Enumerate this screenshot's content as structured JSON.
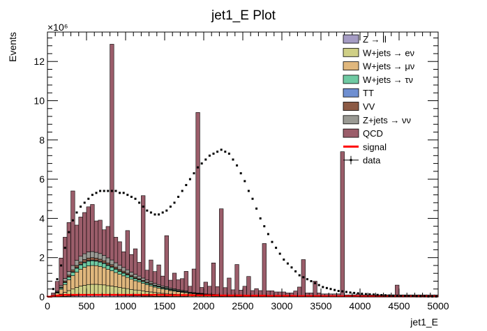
{
  "chart_data": {
    "type": "bar",
    "stacked": true,
    "title": "jet1_E Plot",
    "xlabel": "jet1_E",
    "ylabel": "Events",
    "y_exponent_label": "×10⁶",
    "xlim": [
      0,
      5000
    ],
    "ylim": [
      0,
      13.5
    ],
    "y_unit_multiplier": 1000000,
    "x_ticks": [
      0,
      500,
      1000,
      1500,
      2000,
      2500,
      3000,
      3500,
      4000,
      4500,
      5000
    ],
    "y_ticks": [
      0,
      2,
      4,
      6,
      8,
      10,
      12
    ],
    "bin_width": 50,
    "grid": false,
    "legend_position": "top-right",
    "legend": [
      {
        "label": "Z → ll",
        "color": "#a59cc4",
        "kind": "box"
      },
      {
        "label": "W+jets → eν",
        "color": "#cfcf86",
        "kind": "box"
      },
      {
        "label": "W+jets → μν",
        "color": "#e0b77d",
        "kind": "box"
      },
      {
        "label": "W+jets → τν",
        "color": "#6fcaa3",
        "kind": "box"
      },
      {
        "label": "TT",
        "color": "#6f8fd1",
        "kind": "box"
      },
      {
        "label": "VV",
        "color": "#8c5a45",
        "kind": "box"
      },
      {
        "label": "Z+jets → νν",
        "color": "#9a9a94",
        "kind": "box"
      },
      {
        "label": "QCD",
        "color": "#9b5d6a",
        "kind": "box"
      },
      {
        "label": "signal",
        "color": "#ff0000",
        "kind": "line"
      },
      {
        "label": "data",
        "color": "#000000",
        "kind": "marker"
      }
    ],
    "bin_centers": [
      25,
      75,
      125,
      175,
      225,
      275,
      325,
      375,
      425,
      475,
      525,
      575,
      625,
      675,
      725,
      775,
      825,
      875,
      925,
      975,
      1025,
      1075,
      1125,
      1175,
      1225,
      1275,
      1325,
      1375,
      1425,
      1475,
      1525,
      1575,
      1625,
      1675,
      1725,
      1775,
      1825,
      1875,
      1925,
      1975,
      2025,
      2075,
      2125,
      2175,
      2225,
      2275,
      2325,
      2375,
      2425,
      2475,
      2525,
      2575,
      2625,
      2675,
      2725,
      2775,
      2825,
      2875,
      2925,
      2975,
      3025,
      3075,
      3125,
      3175,
      3225,
      3275,
      3325,
      3375,
      3425,
      3475,
      3525,
      3575,
      3625,
      3675,
      3725,
      3775,
      3825,
      3875,
      3925,
      3975,
      4025,
      4075,
      4125,
      4175,
      4225,
      4275,
      4325,
      4375,
      4425,
      4475,
      4525,
      4575,
      4625,
      4675,
      4725,
      4775,
      4825,
      4875,
      4925,
      4975
    ],
    "series": [
      {
        "name": "Z → ll",
        "color": "#a59cc4",
        "values": [
          0,
          0,
          0.01,
          0.02,
          0.03,
          0.04,
          0.05,
          0.06,
          0.07,
          0.07,
          0.08,
          0.08,
          0.08,
          0.08,
          0.08,
          0.07,
          0.07,
          0.07,
          0.06,
          0.06,
          0.06,
          0.05,
          0.05,
          0.05,
          0.04,
          0.04,
          0.04,
          0.03,
          0.03,
          0.03,
          0.03,
          0.02,
          0.02,
          0.02,
          0.02,
          0.02,
          0.01,
          0.01,
          0.01,
          0.01,
          0.01,
          0.01,
          0.01,
          0.01,
          0,
          0,
          0,
          0,
          0,
          0,
          0,
          0,
          0,
          0,
          0,
          0,
          0,
          0,
          0,
          0,
          0,
          0,
          0,
          0,
          0,
          0,
          0,
          0,
          0,
          0,
          0,
          0,
          0,
          0,
          0,
          0,
          0,
          0,
          0,
          0,
          0,
          0,
          0,
          0,
          0,
          0,
          0,
          0,
          0,
          0,
          0,
          0,
          0,
          0,
          0,
          0,
          0,
          0,
          0,
          0
        ]
      },
      {
        "name": "W+jets → eν",
        "color": "#cfcf86",
        "values": [
          0,
          0.02,
          0.06,
          0.12,
          0.2,
          0.28,
          0.35,
          0.42,
          0.48,
          0.52,
          0.55,
          0.56,
          0.56,
          0.55,
          0.53,
          0.5,
          0.48,
          0.45,
          0.42,
          0.39,
          0.36,
          0.33,
          0.3,
          0.28,
          0.26,
          0.23,
          0.21,
          0.19,
          0.17,
          0.15,
          0.14,
          0.12,
          0.11,
          0.1,
          0.09,
          0.08,
          0.07,
          0.06,
          0.05,
          0.05,
          0.04,
          0.04,
          0.03,
          0.03,
          0.03,
          0.02,
          0.02,
          0.02,
          0.02,
          0.01,
          0.01,
          0.01,
          0.01,
          0.01,
          0.01,
          0.01,
          0,
          0,
          0,
          0,
          0,
          0,
          0,
          0,
          0,
          0,
          0,
          0,
          0,
          0,
          0,
          0,
          0,
          0,
          0,
          0,
          0,
          0,
          0,
          0,
          0,
          0,
          0,
          0,
          0,
          0,
          0,
          0,
          0,
          0,
          0,
          0,
          0,
          0,
          0,
          0,
          0,
          0,
          0,
          0
        ]
      },
      {
        "name": "W+jets → μν",
        "color": "#e0b77d",
        "values": [
          0,
          0.03,
          0.12,
          0.25,
          0.4,
          0.55,
          0.68,
          0.78,
          0.86,
          0.92,
          0.95,
          0.96,
          0.95,
          0.92,
          0.88,
          0.83,
          0.78,
          0.72,
          0.67,
          0.62,
          0.57,
          0.52,
          0.47,
          0.43,
          0.39,
          0.35,
          0.31,
          0.28,
          0.25,
          0.22,
          0.2,
          0.18,
          0.16,
          0.14,
          0.12,
          0.11,
          0.1,
          0.09,
          0.08,
          0.07,
          0.06,
          0.05,
          0.05,
          0.04,
          0.04,
          0.03,
          0.03,
          0.03,
          0.02,
          0.02,
          0.02,
          0.02,
          0.01,
          0.01,
          0.01,
          0.01,
          0.01,
          0.01,
          0,
          0,
          0,
          0,
          0,
          0,
          0,
          0,
          0,
          0,
          0,
          0,
          0,
          0,
          0,
          0,
          0,
          0,
          0,
          0,
          0,
          0,
          0,
          0,
          0,
          0,
          0,
          0,
          0,
          0,
          0,
          0,
          0,
          0,
          0,
          0,
          0,
          0,
          0,
          0,
          0,
          0
        ]
      },
      {
        "name": "W+jets → τν",
        "color": "#6fcaa3",
        "values": [
          0,
          0.01,
          0.03,
          0.06,
          0.1,
          0.14,
          0.17,
          0.2,
          0.22,
          0.23,
          0.24,
          0.24,
          0.23,
          0.22,
          0.21,
          0.2,
          0.18,
          0.17,
          0.15,
          0.14,
          0.13,
          0.12,
          0.11,
          0.1,
          0.09,
          0.08,
          0.07,
          0.06,
          0.06,
          0.05,
          0.05,
          0.04,
          0.04,
          0.03,
          0.03,
          0.03,
          0.02,
          0.02,
          0.02,
          0.02,
          0.01,
          0.01,
          0.01,
          0.01,
          0.01,
          0.01,
          0,
          0,
          0,
          0,
          0,
          0,
          0,
          0,
          0,
          0,
          0,
          0,
          0,
          0,
          0,
          0,
          0,
          0,
          0,
          0,
          0,
          0,
          0,
          0,
          0,
          0,
          0,
          0,
          0,
          0,
          0,
          0,
          0,
          0,
          0,
          0,
          0,
          0,
          0,
          0,
          0,
          0,
          0,
          0,
          0,
          0,
          0,
          0,
          0,
          0,
          0,
          0,
          0,
          0
        ]
      },
      {
        "name": "TT",
        "color": "#6f8fd1",
        "values": [
          0,
          0,
          0.01,
          0.01,
          0.02,
          0.02,
          0.03,
          0.03,
          0.03,
          0.03,
          0.03,
          0.03,
          0.03,
          0.03,
          0.03,
          0.03,
          0.03,
          0.02,
          0.02,
          0.02,
          0.02,
          0.02,
          0.02,
          0.02,
          0.01,
          0.01,
          0.01,
          0.01,
          0.01,
          0.01,
          0.01,
          0.01,
          0.01,
          0.01,
          0.01,
          0,
          0,
          0,
          0,
          0,
          0,
          0,
          0,
          0,
          0,
          0,
          0,
          0,
          0,
          0,
          0,
          0,
          0,
          0,
          0,
          0,
          0,
          0,
          0,
          0,
          0,
          0,
          0,
          0,
          0,
          0,
          0,
          0,
          0,
          0,
          0,
          0,
          0,
          0,
          0,
          0,
          0,
          0,
          0,
          0,
          0,
          0,
          0,
          0,
          0,
          0,
          0,
          0,
          0,
          0,
          0,
          0,
          0,
          0,
          0,
          0,
          0,
          0,
          0,
          0
        ]
      },
      {
        "name": "VV",
        "color": "#8c5a45",
        "values": [
          0,
          0.01,
          0.02,
          0.04,
          0.06,
          0.08,
          0.1,
          0.11,
          0.12,
          0.13,
          0.13,
          0.13,
          0.12,
          0.12,
          0.11,
          0.1,
          0.1,
          0.09,
          0.08,
          0.08,
          0.07,
          0.06,
          0.06,
          0.05,
          0.05,
          0.04,
          0.04,
          0.03,
          0.03,
          0.03,
          0.03,
          0.02,
          0.02,
          0.02,
          0.02,
          0.02,
          0.01,
          0.01,
          0.01,
          0.01,
          0.01,
          0.01,
          0.01,
          0.01,
          0,
          0,
          0,
          0,
          0,
          0,
          0,
          0,
          0,
          0,
          0,
          0,
          0,
          0,
          0,
          0,
          0,
          0,
          0,
          0,
          0,
          0,
          0,
          0,
          0,
          0,
          0,
          0,
          0,
          0,
          0,
          0,
          0,
          0,
          0,
          0,
          0,
          0,
          0,
          0,
          0,
          0,
          0,
          0,
          0,
          0,
          0,
          0,
          0,
          0,
          0,
          0,
          0,
          0,
          0,
          0
        ]
      },
      {
        "name": "Z+jets → νν",
        "color": "#9a9a94",
        "values": [
          0,
          0.01,
          0.04,
          0.08,
          0.13,
          0.18,
          0.22,
          0.26,
          0.29,
          0.3,
          0.31,
          0.31,
          0.3,
          0.29,
          0.28,
          0.26,
          0.24,
          0.22,
          0.21,
          0.19,
          0.17,
          0.16,
          0.14,
          0.13,
          0.12,
          0.11,
          0.1,
          0.09,
          0.08,
          0.07,
          0.06,
          0.06,
          0.05,
          0.05,
          0.04,
          0.04,
          0.03,
          0.03,
          0.03,
          0.02,
          0.02,
          0.02,
          0.02,
          0.02,
          0.01,
          0.01,
          0.01,
          0.01,
          0.01,
          0.01,
          0.01,
          0.01,
          0,
          0,
          0,
          0,
          0,
          0,
          0,
          0,
          0,
          0,
          0,
          0,
          0,
          0,
          0,
          0,
          0,
          0,
          0,
          0,
          0,
          0,
          0,
          0,
          0,
          0,
          0,
          0,
          0,
          0,
          0,
          0,
          0,
          0,
          0,
          0,
          0,
          0,
          0,
          0,
          0,
          0,
          0,
          0,
          0,
          0,
          0,
          0
        ]
      },
      {
        "name": "QCD",
        "color": "#9b5d6a",
        "values": [
          0,
          0.12,
          0.5,
          1.4,
          2.1,
          2.5,
          3.8,
          1.8,
          2.0,
          2.1,
          2.3,
          2.4,
          1.6,
          1.7,
          1.3,
          1.6,
          11.0,
          1.3,
          1.2,
          0.8,
          2.0,
          0.9,
          1.3,
          0.7,
          4.2,
          0.5,
          1.1,
          0.6,
          1.0,
          0.5,
          2.6,
          0.4,
          0.8,
          0.5,
          0.6,
          1.0,
          0.3,
          1.2,
          9.2,
          0.3,
          0.6,
          0.4,
          1.6,
          0.4,
          4.4,
          0.4,
          0.9,
          0.3,
          1.6,
          0.3,
          0.5,
          1.0,
          0.3,
          0.4,
          0.3,
          2.7,
          0.3,
          0.3,
          0.25,
          0.25,
          0.25,
          0.2,
          0.2,
          0.3,
          0.5,
          1.9,
          0.2,
          0.2,
          0.8,
          0.2,
          0.15,
          0.15,
          0.15,
          0.15,
          0.15,
          7.4,
          0.1,
          0.1,
          0.1,
          0.15,
          0.1,
          0.1,
          0.1,
          0.1,
          0.1,
          0.1,
          0.1,
          0.1,
          0.1,
          0.6,
          0.1,
          0.1,
          0.1,
          0.1,
          0.1,
          0.1,
          0.1,
          0.1,
          0.1,
          0.1
        ]
      }
    ],
    "signal": {
      "name": "signal",
      "color": "#ff0000",
      "values": [
        0.01,
        0.03,
        0.06,
        0.08,
        0.1,
        0.1,
        0.1,
        0.1,
        0.1,
        0.1,
        0.1,
        0.1,
        0.1,
        0.1,
        0.1,
        0.1,
        0.1,
        0.1,
        0.1,
        0.1,
        0.1,
        0.1,
        0.1,
        0.1,
        0.1,
        0.1,
        0.1,
        0.1,
        0.1,
        0.1,
        0.09,
        0.09,
        0.09,
        0.09,
        0.09,
        0.09,
        0.09,
        0.08,
        0.08,
        0.08,
        0.08,
        0.08,
        0.08,
        0.08,
        0.07,
        0.07,
        0.07,
        0.07,
        0.07,
        0.07,
        0.06,
        0.06,
        0.06,
        0.06,
        0.06,
        0.06,
        0.05,
        0.05,
        0.05,
        0.05,
        0.05,
        0.05,
        0.05,
        0.04,
        0.04,
        0.04,
        0.04,
        0.04,
        0.04,
        0.04,
        0.03,
        0.03,
        0.03,
        0.03,
        0.03,
        0.03,
        0.03,
        0.03,
        0.03,
        0.03,
        0.02,
        0.02,
        0.02,
        0.02,
        0.02,
        0.02,
        0.02,
        0.02,
        0.02,
        0.02,
        0.02,
        0.02,
        0.02,
        0.02,
        0.02,
        0.02,
        0.02,
        0.02,
        0.02,
        0.02
      ]
    },
    "data": {
      "name": "data",
      "color": "#000000",
      "x": [
        75,
        125,
        175,
        225,
        275,
        325,
        375,
        425,
        475,
        525,
        575,
        625,
        675,
        725,
        775,
        825,
        875,
        925,
        975,
        1025,
        1075,
        1125,
        1175,
        1225,
        1275,
        1325,
        1375,
        1425,
        1475,
        1525,
        1575,
        1625,
        1675,
        1725,
        1775,
        1825,
        1875,
        1925,
        1975,
        2025,
        2075,
        2125,
        2175,
        2225,
        2275,
        2325,
        2375,
        2425,
        2475,
        2525,
        2575,
        2625,
        2675,
        2725,
        2775,
        2825,
        2875,
        2925,
        2975,
        3025,
        3075,
        3125,
        3175,
        3225,
        3275,
        3325,
        3375,
        3425,
        3475,
        3525,
        3575,
        3625,
        3675,
        3725,
        3775,
        3825,
        3875,
        3925,
        3975,
        4025,
        4075,
        4125,
        4175,
        4225,
        4275,
        4325,
        4375,
        4425,
        4475,
        4525,
        4575,
        4625,
        4675,
        4725,
        4775,
        4825,
        4875,
        4925,
        4975
      ],
      "y": [
        0.4,
        0.9,
        1.6,
        2.5,
        3.3,
        3.9,
        4.3,
        4.6,
        4.8,
        5.0,
        5.2,
        5.3,
        5.4,
        5.4,
        5.4,
        5.4,
        5.4,
        5.3,
        5.3,
        5.2,
        5.1,
        5.0,
        4.8,
        4.6,
        4.4,
        4.3,
        4.2,
        4.2,
        4.3,
        4.4,
        4.6,
        4.8,
        5.1,
        5.4,
        5.7,
        6.0,
        6.3,
        6.6,
        6.8,
        7.0,
        7.2,
        7.3,
        7.4,
        7.5,
        7.4,
        7.3,
        7.0,
        6.7,
        6.3,
        5.9,
        5.4,
        5.0,
        4.5,
        4.0,
        3.6,
        3.2,
        2.8,
        2.5,
        2.2,
        1.9,
        1.7,
        1.5,
        1.3,
        1.1,
        1.0,
        0.9,
        0.8,
        0.7,
        0.6,
        0.5,
        0.45,
        0.4,
        0.35,
        0.3,
        0.28,
        0.25,
        0.22,
        0.2,
        0.18,
        0.16,
        0.14,
        0.13,
        0.12,
        0.1,
        0.09,
        0.08,
        0.07,
        0.06,
        0.06,
        0.05,
        0.05,
        0.04,
        0.04,
        0.03,
        0.03,
        0.03,
        0.02,
        0.02,
        0.02
      ]
    }
  }
}
